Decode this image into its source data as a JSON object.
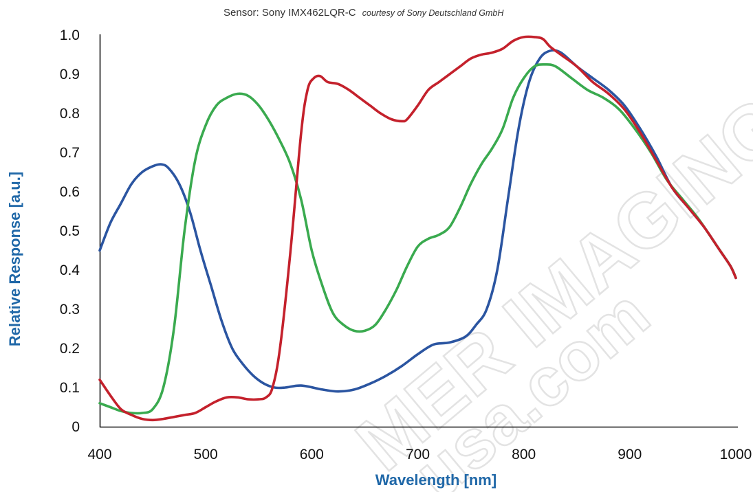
{
  "chart_data": {
    "type": "line",
    "title": "Sensor: Sony IMX462LQR-C",
    "subtitle": "courtesy of Sony Deutschland GmbH",
    "xlabel": "Wavelength [nm]",
    "ylabel": "Relative Response [a.u.]",
    "xlim": [
      400,
      1000
    ],
    "ylim": [
      0,
      1.0
    ],
    "x_ticks": [
      "400",
      "500",
      "600",
      "700",
      "800",
      "900",
      "1000"
    ],
    "y_ticks": [
      "0",
      "0.1",
      "0.2",
      "0.3",
      "0.4",
      "0.5",
      "0.6",
      "0.7",
      "0.8",
      "0.9",
      "1.0"
    ],
    "grid": false,
    "legend": "none",
    "series": [
      {
        "color": "#2b55a1",
        "points": [
          [
            400,
            0.45
          ],
          [
            410,
            0.52
          ],
          [
            420,
            0.57
          ],
          [
            430,
            0.62
          ],
          [
            440,
            0.65
          ],
          [
            450,
            0.665
          ],
          [
            458,
            0.67
          ],
          [
            465,
            0.66
          ],
          [
            475,
            0.62
          ],
          [
            485,
            0.55
          ],
          [
            495,
            0.45
          ],
          [
            505,
            0.36
          ],
          [
            515,
            0.27
          ],
          [
            525,
            0.2
          ],
          [
            535,
            0.16
          ],
          [
            545,
            0.13
          ],
          [
            555,
            0.11
          ],
          [
            565,
            0.1
          ],
          [
            575,
            0.1
          ],
          [
            590,
            0.105
          ],
          [
            610,
            0.095
          ],
          [
            625,
            0.09
          ],
          [
            640,
            0.095
          ],
          [
            655,
            0.11
          ],
          [
            670,
            0.13
          ],
          [
            685,
            0.155
          ],
          [
            700,
            0.185
          ],
          [
            715,
            0.21
          ],
          [
            730,
            0.215
          ],
          [
            745,
            0.23
          ],
          [
            755,
            0.26
          ],
          [
            765,
            0.3
          ],
          [
            775,
            0.4
          ],
          [
            785,
            0.58
          ],
          [
            795,
            0.76
          ],
          [
            805,
            0.88
          ],
          [
            815,
            0.94
          ],
          [
            825,
            0.96
          ],
          [
            835,
            0.955
          ],
          [
            850,
            0.92
          ],
          [
            865,
            0.89
          ],
          [
            880,
            0.86
          ],
          [
            895,
            0.82
          ],
          [
            910,
            0.76
          ],
          [
            925,
            0.69
          ],
          [
            940,
            0.61
          ],
          [
            955,
            0.56
          ],
          [
            970,
            0.51
          ],
          [
            985,
            0.45
          ],
          [
            995,
            0.41
          ],
          [
            1000,
            0.38
          ]
        ]
      },
      {
        "color": "#3aaa4f",
        "points": [
          [
            400,
            0.06
          ],
          [
            410,
            0.05
          ],
          [
            420,
            0.04
          ],
          [
            430,
            0.035
          ],
          [
            440,
            0.035
          ],
          [
            450,
            0.045
          ],
          [
            460,
            0.1
          ],
          [
            470,
            0.25
          ],
          [
            480,
            0.5
          ],
          [
            490,
            0.68
          ],
          [
            500,
            0.77
          ],
          [
            510,
            0.82
          ],
          [
            520,
            0.84
          ],
          [
            530,
            0.85
          ],
          [
            540,
            0.845
          ],
          [
            550,
            0.82
          ],
          [
            560,
            0.78
          ],
          [
            570,
            0.73
          ],
          [
            580,
            0.67
          ],
          [
            590,
            0.58
          ],
          [
            600,
            0.45
          ],
          [
            610,
            0.36
          ],
          [
            620,
            0.29
          ],
          [
            630,
            0.26
          ],
          [
            640,
            0.245
          ],
          [
            650,
            0.245
          ],
          [
            660,
            0.26
          ],
          [
            670,
            0.3
          ],
          [
            680,
            0.35
          ],
          [
            690,
            0.41
          ],
          [
            700,
            0.46
          ],
          [
            710,
            0.48
          ],
          [
            720,
            0.49
          ],
          [
            730,
            0.51
          ],
          [
            740,
            0.56
          ],
          [
            750,
            0.62
          ],
          [
            760,
            0.67
          ],
          [
            770,
            0.71
          ],
          [
            780,
            0.76
          ],
          [
            790,
            0.84
          ],
          [
            800,
            0.89
          ],
          [
            810,
            0.92
          ],
          [
            820,
            0.925
          ],
          [
            830,
            0.92
          ],
          [
            845,
            0.89
          ],
          [
            860,
            0.86
          ],
          [
            875,
            0.84
          ],
          [
            890,
            0.81
          ],
          [
            905,
            0.76
          ],
          [
            920,
            0.7
          ],
          [
            935,
            0.63
          ],
          [
            950,
            0.58
          ],
          [
            965,
            0.53
          ],
          [
            980,
            0.47
          ],
          [
            995,
            0.41
          ],
          [
            1000,
            0.38
          ]
        ]
      },
      {
        "color": "#c4212c",
        "points": [
          [
            400,
            0.12
          ],
          [
            410,
            0.08
          ],
          [
            420,
            0.045
          ],
          [
            430,
            0.03
          ],
          [
            440,
            0.02
          ],
          [
            450,
            0.017
          ],
          [
            460,
            0.02
          ],
          [
            470,
            0.025
          ],
          [
            480,
            0.03
          ],
          [
            490,
            0.035
          ],
          [
            500,
            0.05
          ],
          [
            510,
            0.065
          ],
          [
            520,
            0.075
          ],
          [
            530,
            0.075
          ],
          [
            540,
            0.07
          ],
          [
            550,
            0.07
          ],
          [
            557,
            0.075
          ],
          [
            563,
            0.1
          ],
          [
            570,
            0.2
          ],
          [
            580,
            0.45
          ],
          [
            590,
            0.75
          ],
          [
            596,
            0.86
          ],
          [
            602,
            0.89
          ],
          [
            608,
            0.895
          ],
          [
            615,
            0.88
          ],
          [
            625,
            0.875
          ],
          [
            635,
            0.86
          ],
          [
            645,
            0.84
          ],
          [
            655,
            0.82
          ],
          [
            665,
            0.8
          ],
          [
            675,
            0.785
          ],
          [
            685,
            0.78
          ],
          [
            690,
            0.785
          ],
          [
            700,
            0.82
          ],
          [
            710,
            0.86
          ],
          [
            720,
            0.88
          ],
          [
            730,
            0.9
          ],
          [
            740,
            0.92
          ],
          [
            750,
            0.94
          ],
          [
            760,
            0.95
          ],
          [
            770,
            0.955
          ],
          [
            780,
            0.965
          ],
          [
            790,
            0.985
          ],
          [
            800,
            0.995
          ],
          [
            810,
            0.995
          ],
          [
            818,
            0.99
          ],
          [
            825,
            0.97
          ],
          [
            835,
            0.95
          ],
          [
            850,
            0.92
          ],
          [
            865,
            0.88
          ],
          [
            880,
            0.85
          ],
          [
            895,
            0.81
          ],
          [
            910,
            0.75
          ],
          [
            925,
            0.68
          ],
          [
            940,
            0.61
          ],
          [
            955,
            0.56
          ],
          [
            970,
            0.51
          ],
          [
            985,
            0.45
          ],
          [
            995,
            0.41
          ],
          [
            1000,
            0.38
          ]
        ]
      }
    ],
    "watermark": [
      "MER IMAGING US",
      "usa.com"
    ],
    "colors": {
      "axis_label": "#2068a8",
      "axis_line": "#111111",
      "watermark": "#e3e3e3"
    }
  }
}
